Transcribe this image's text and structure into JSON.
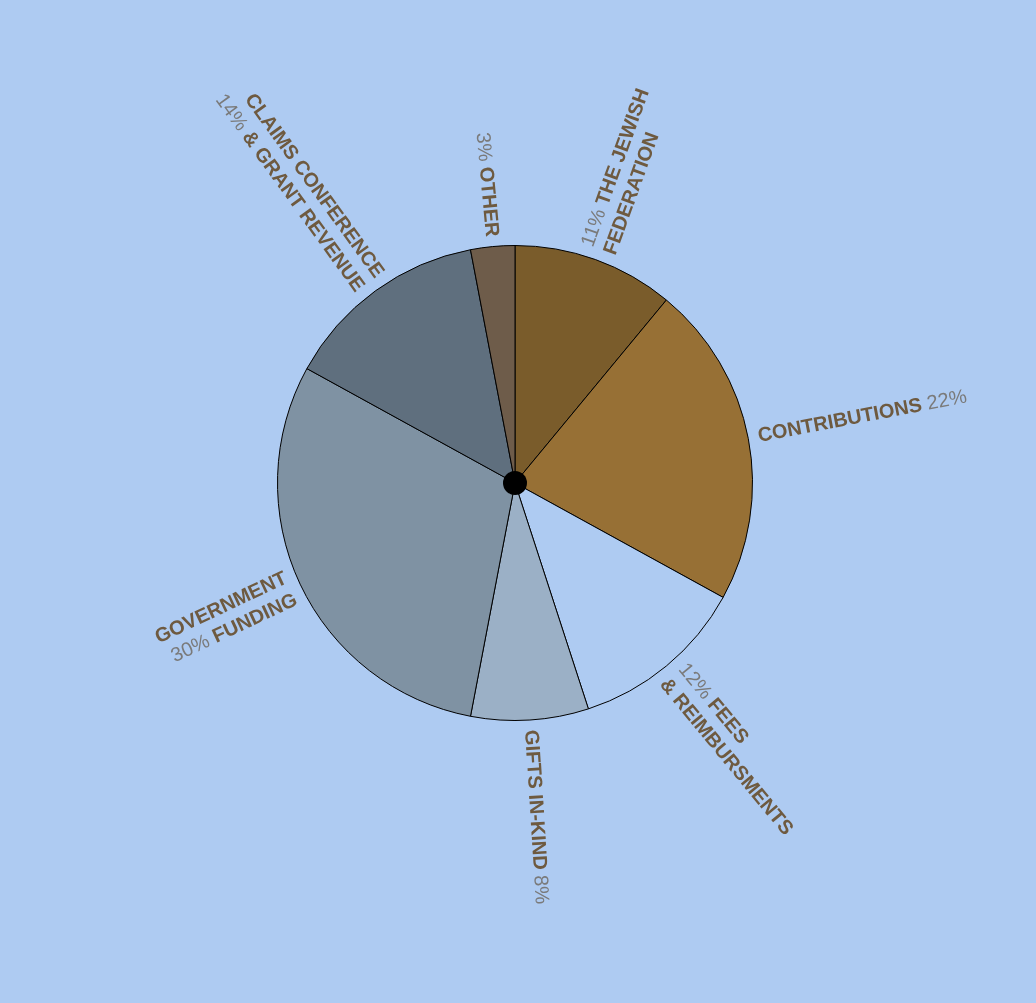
{
  "chart_data": {
    "type": "pie",
    "categories": [
      "THE JEWISH\nFEDERATION",
      "CONTRIBUTIONS",
      "FEES\n& REIMBURSMENTS",
      "GIFTS IN-KIND",
      "GOVERNMENT\nFUNDING",
      "CLAIMS CONFERENCE\n& GRANT REVENUE",
      "OTHER"
    ],
    "values": [
      11,
      22,
      12,
      8,
      30,
      14,
      3
    ],
    "value_labels": [
      "11%",
      "22%",
      "12%",
      "8%",
      "30%",
      "14%",
      "3%"
    ],
    "colors": [
      "#7a5c2b",
      "#977035",
      "#aecbf2",
      "#9bb0c6",
      "#7f92a3",
      "#5f6f7e",
      "#6e5c4a"
    ],
    "legend": false
  }
}
